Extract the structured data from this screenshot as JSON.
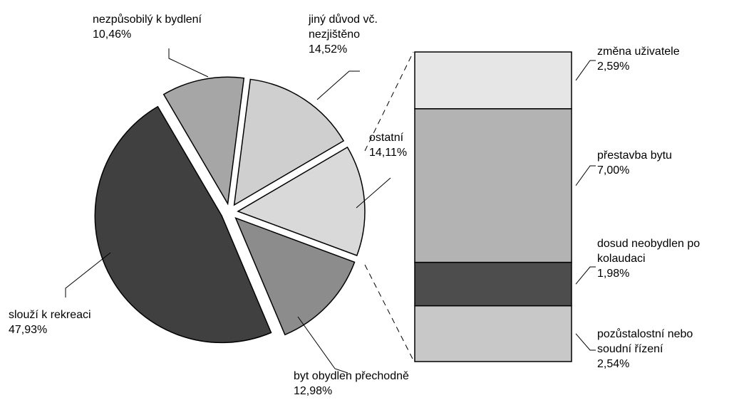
{
  "chart_data": [
    {
      "type": "pie",
      "categories": [
        "ostatní",
        "byt obydlen přechodně",
        "slouží k rekreaci",
        "nezpůsobilý k bydlení",
        "jiný důvod vč. nezjištěno"
      ],
      "values": [
        14.11,
        12.98,
        47.93,
        10.46,
        14.52
      ],
      "value_labels": [
        "14,11%",
        "12,98%",
        "47,93%",
        "10,46%",
        "14,52%"
      ],
      "colors": [
        "#d9d9d9",
        "#8c8c8c",
        "#404040",
        "#a6a6a6",
        "#cfcfcf"
      ]
    },
    {
      "type": "stacked-bar",
      "categories": [
        "změna uživatele",
        "přestavba bytu",
        "dosud neobydlen po kolaudaci",
        "pozůstalostní nebo soudní řízení"
      ],
      "values": [
        2.59,
        7.0,
        1.98,
        2.54
      ],
      "value_labels": [
        "2,59%",
        "7,00%",
        "1,98%",
        "2,54%"
      ],
      "colors": [
        "#e6e6e6",
        "#b3b3b3",
        "#4d4d4d",
        "#c8c8c8"
      ]
    }
  ]
}
